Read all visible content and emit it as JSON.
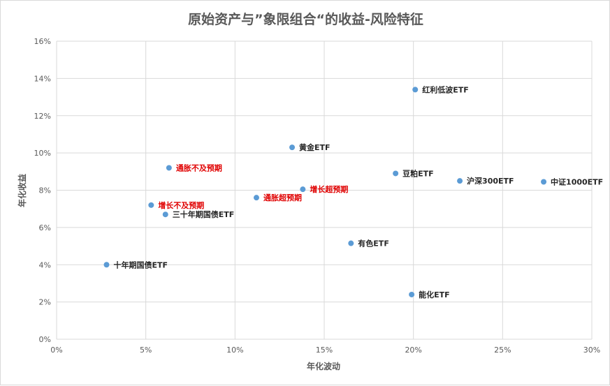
{
  "chart_data": {
    "type": "scatter",
    "title": "原始资产与”象限组合“的收益-风险特征",
    "xlabel": "年化波动",
    "ylabel": "年化收益",
    "xlim": [
      0,
      30
    ],
    "ylim": [
      0,
      16
    ],
    "x_ticks": [
      0,
      5,
      10,
      15,
      20,
      25,
      30
    ],
    "y_ticks": [
      0,
      2,
      4,
      6,
      8,
      10,
      12,
      14,
      16
    ],
    "tick_format": "percent",
    "grid": true,
    "marker_color": "#5b9bd5",
    "highlight_label_color": "#e00000",
    "normal_label_color": "#262626",
    "points": [
      {
        "label": "红利低波ETF",
        "x": 20.1,
        "y": 13.4,
        "highlight": false
      },
      {
        "label": "黄金ETF",
        "x": 13.2,
        "y": 10.3,
        "highlight": false
      },
      {
        "label": "通胀不及预期",
        "x": 6.3,
        "y": 9.2,
        "highlight": true
      },
      {
        "label": "豆粕ETF",
        "x": 19.0,
        "y": 8.9,
        "highlight": false
      },
      {
        "label": "沪深300ETF",
        "x": 22.6,
        "y": 8.5,
        "highlight": false
      },
      {
        "label": "中证1000ETF",
        "x": 27.3,
        "y": 8.45,
        "highlight": false
      },
      {
        "label": "增长超预期",
        "x": 13.8,
        "y": 8.05,
        "highlight": true
      },
      {
        "label": "通胀超预期",
        "x": 11.2,
        "y": 7.6,
        "highlight": true
      },
      {
        "label": "增长不及预期",
        "x": 5.3,
        "y": 7.2,
        "highlight": true
      },
      {
        "label": "三十年期国债ETF",
        "x": 6.1,
        "y": 6.7,
        "highlight": false
      },
      {
        "label": "有色ETF",
        "x": 16.5,
        "y": 5.15,
        "highlight": false
      },
      {
        "label": "十年期国债ETF",
        "x": 2.8,
        "y": 4.0,
        "highlight": false
      },
      {
        "label": "能化ETF",
        "x": 19.9,
        "y": 2.4,
        "highlight": false
      }
    ]
  }
}
